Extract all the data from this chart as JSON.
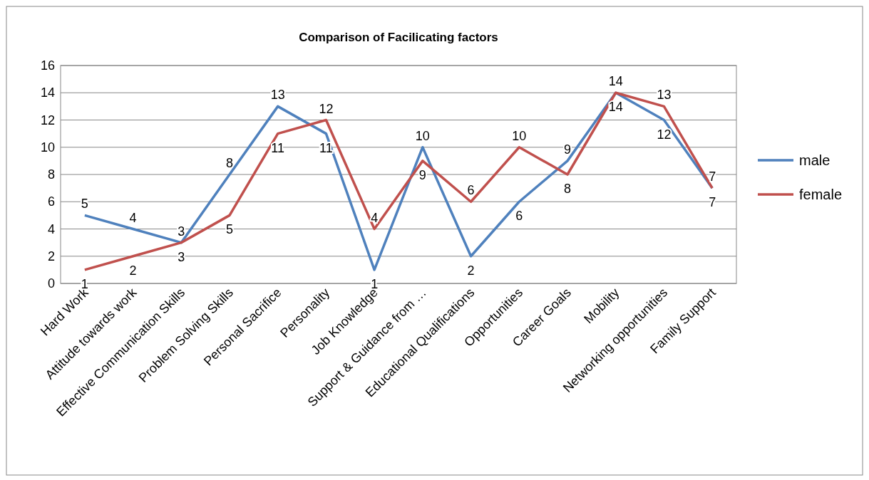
{
  "chart_data": {
    "type": "line",
    "title": "Comparison of Facilicating factors",
    "categories": [
      "Hard Work",
      "Attitude towards work",
      "Effective Communication Skills",
      "Problem Solving Skills",
      "Personal Sacrifice",
      "Personality",
      "Job Knowledge",
      "Support & Guidance from …",
      "Educational Qualifications",
      "Opportunities",
      "Career Goals",
      "Mobility",
      "Networking opportunities",
      "Family Support"
    ],
    "series": [
      {
        "name": "male",
        "color": "#4f81bd",
        "values": [
          5,
          4,
          3,
          8,
          13,
          11,
          1,
          10,
          2,
          6,
          9,
          14,
          12,
          7
        ]
      },
      {
        "name": "female",
        "color": "#c0504d",
        "values": [
          1,
          2,
          3,
          5,
          11,
          12,
          4,
          9,
          6,
          10,
          8,
          14,
          13,
          7
        ]
      }
    ],
    "ylim": [
      0,
      16
    ],
    "yticks": [
      0,
      2,
      4,
      6,
      8,
      10,
      12,
      14,
      16
    ],
    "grid": "y",
    "legend": "right",
    "data_labels": true,
    "marker": "none",
    "line_style": "solid"
  }
}
